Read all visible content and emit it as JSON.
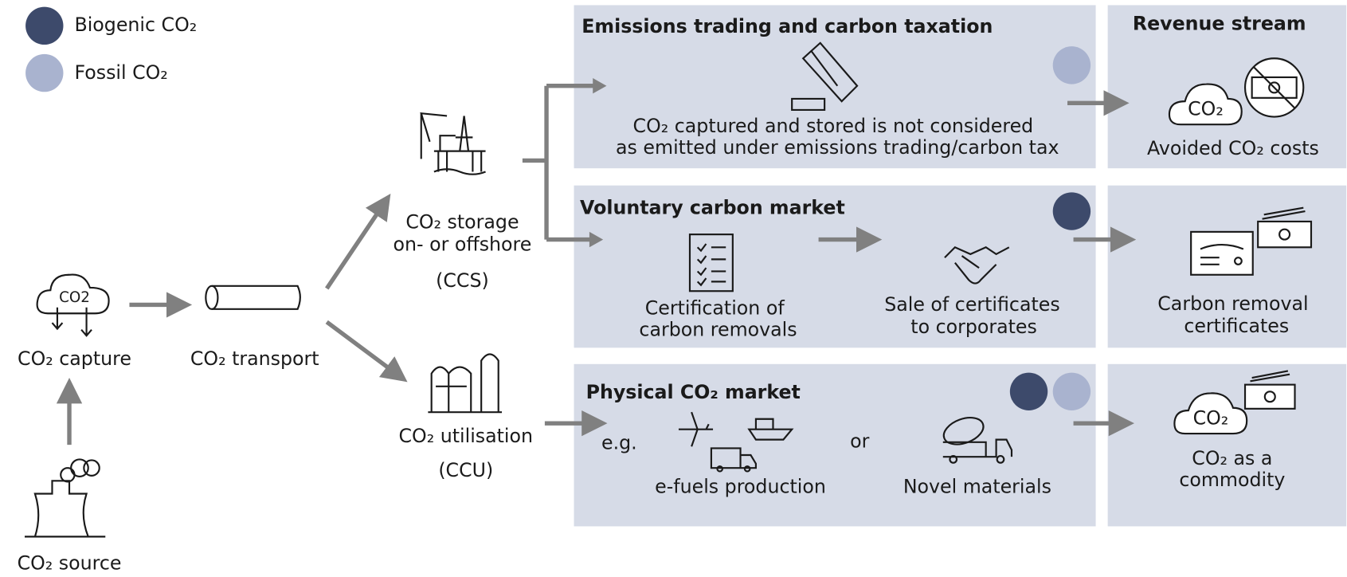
{
  "legend": [
    {
      "label": "Biogenic CO₂"
    },
    {
      "label": "Fossil CO₂"
    }
  ],
  "chain": {
    "source": "CO₂ source",
    "capture": "CO₂ capture",
    "capture_icon": "CO2",
    "transport": "CO₂ transport",
    "storage": [
      "CO₂ storage",
      "on- or offshore",
      "(CCS)"
    ],
    "utilisation": [
      "CO₂ utilisation",
      "(CCU)"
    ]
  },
  "panels": {
    "emissions": {
      "title": "Emissions trading and carbon taxation",
      "text": [
        "CO₂ captured and stored is not considered",
        "as emitted under emissions trading/carbon tax"
      ]
    },
    "voluntary": {
      "title": "Voluntary carbon market",
      "certification": [
        "Certification of",
        "carbon removals"
      ],
      "sale": [
        "Sale of certificates",
        "to corporates"
      ]
    },
    "physical": {
      "title": "Physical CO₂ market",
      "eg": "e.g.",
      "efuels": "e-fuels production",
      "or": "or",
      "materials": "Novel materials"
    }
  },
  "revenue": {
    "title": "Revenue stream",
    "avoided": "Avoided CO₂ costs",
    "avoided_icon": "CO₂",
    "removal": [
      "Carbon removal",
      "certificates"
    ],
    "commodity": [
      "CO₂ as a",
      "commodity"
    ],
    "commodity_icon": "CO₂"
  }
}
